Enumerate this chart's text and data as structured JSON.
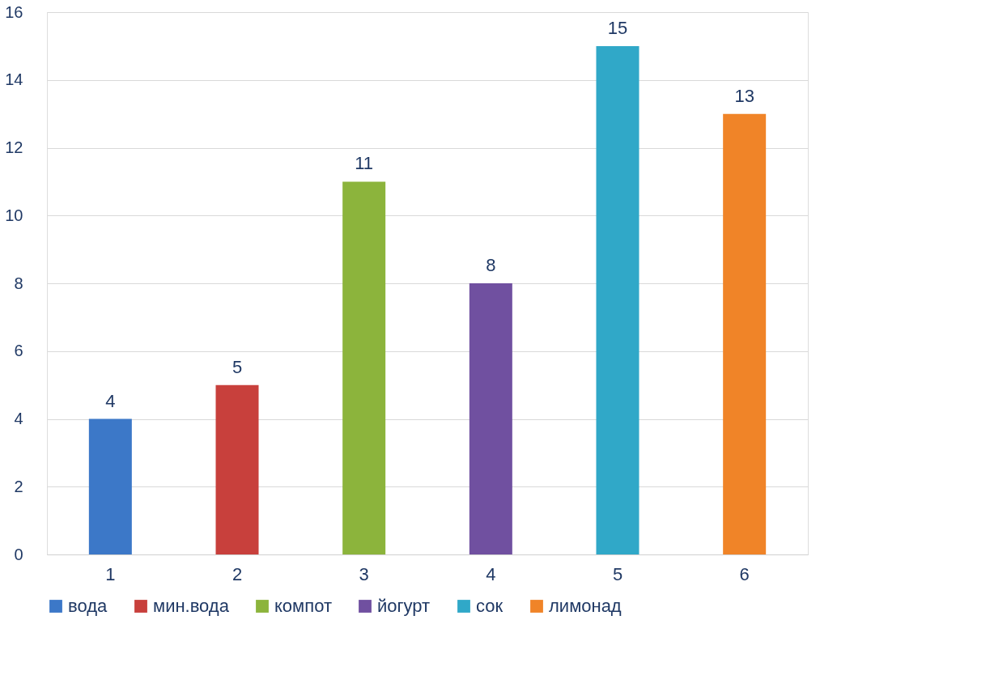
{
  "chart_data": {
    "type": "bar",
    "categories": [
      "1",
      "2",
      "3",
      "4",
      "5",
      "6"
    ],
    "series": [
      {
        "name": "вода",
        "color": "#3c78c8",
        "values": [
          4,
          null,
          null,
          null,
          null,
          null
        ]
      },
      {
        "name": "мин.вода",
        "color": "#c8403c",
        "values": [
          null,
          5,
          null,
          null,
          null,
          null
        ]
      },
      {
        "name": "компот",
        "color": "#8cb43c",
        "values": [
          null,
          null,
          11,
          null,
          null,
          null
        ]
      },
      {
        "name": "йогурт",
        "color": "#7050a0",
        "values": [
          null,
          null,
          null,
          8,
          null,
          null
        ]
      },
      {
        "name": "сок",
        "color": "#30a8c8",
        "values": [
          null,
          null,
          null,
          null,
          15,
          null
        ]
      },
      {
        "name": "лимонад",
        "color": "#f08428",
        "values": [
          null,
          null,
          null,
          null,
          null,
          13
        ]
      }
    ],
    "ylim": [
      0,
      16
    ],
    "yticks": [
      0,
      2,
      4,
      6,
      8,
      10,
      12,
      14,
      16
    ],
    "grid": "y",
    "legend": "bottom",
    "data_labels": true
  }
}
